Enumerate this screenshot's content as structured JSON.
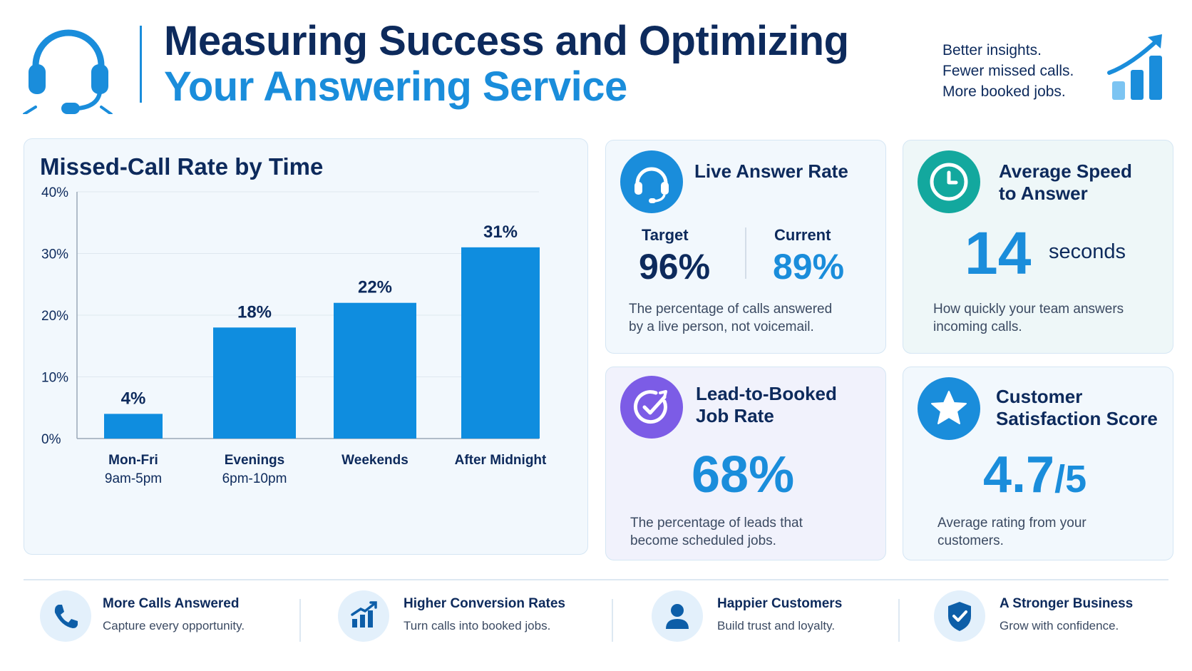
{
  "header": {
    "title_line1": "Measuring Success and Optimizing",
    "title_line2": "Your Answering Service",
    "tagline": [
      "Better insights.",
      "Fewer missed calls.",
      "More booked jobs."
    ]
  },
  "colors": {
    "navy": "#0d2a5c",
    "accent_blue": "#1a8ddb",
    "bar_blue": "#0f8ddf",
    "teal": "#13a89e",
    "purple": "#7c5ce6"
  },
  "chart_data": {
    "type": "bar",
    "title": "Missed-Call Rate by Time",
    "categories": [
      [
        "Mon-Fri",
        "9am-5pm"
      ],
      [
        "Evenings",
        "6pm-10pm"
      ],
      [
        "Weekends"
      ],
      [
        "After Midnight"
      ]
    ],
    "values": [
      4,
      18,
      22,
      31
    ],
    "value_labels": [
      "4%",
      "18%",
      "22%",
      "31%"
    ],
    "ylim": [
      0,
      40
    ],
    "yticks": [
      0,
      10,
      20,
      30,
      40
    ],
    "ytick_labels": [
      "0%",
      "10%",
      "20%",
      "30%",
      "40%"
    ],
    "xlabel": "",
    "ylabel": "",
    "grid": true
  },
  "kpis": {
    "live_answer": {
      "title": "Live Answer Rate",
      "target_label": "Target",
      "target_value": "96%",
      "current_label": "Current",
      "current_value": "89%",
      "description": [
        "The percentage of calls answered",
        "by a live person, not voicemail."
      ],
      "icon": "headset-icon"
    },
    "speed": {
      "title": [
        "Average Speed",
        "to Answer"
      ],
      "value": "14",
      "unit": "seconds",
      "description": [
        "How quickly your team answers",
        "incoming calls."
      ],
      "icon": "clock-icon"
    },
    "lead": {
      "title": [
        "Lead-to-Booked",
        "Job Rate"
      ],
      "value": "68%",
      "description": [
        "The percentage of leads that",
        "become scheduled jobs."
      ],
      "icon": "target-check-icon"
    },
    "csat": {
      "title": [
        "Customer",
        "Satisfaction Score"
      ],
      "value": "4.7",
      "value_suffix": "/5",
      "description": [
        "Average rating from your",
        "customers."
      ],
      "icon": "star-icon"
    }
  },
  "benefits": [
    {
      "title": "More Calls Answered",
      "desc": "Capture every opportunity.",
      "icon": "phone-icon"
    },
    {
      "title": "Higher Conversion Rates",
      "desc": "Turn calls into booked jobs.",
      "icon": "growth-chart-icon"
    },
    {
      "title": "Happier Customers",
      "desc": "Build trust and loyalty.",
      "icon": "person-icon"
    },
    {
      "title": "A Stronger Business",
      "desc": "Grow with confidence.",
      "icon": "shield-check-icon"
    }
  ]
}
